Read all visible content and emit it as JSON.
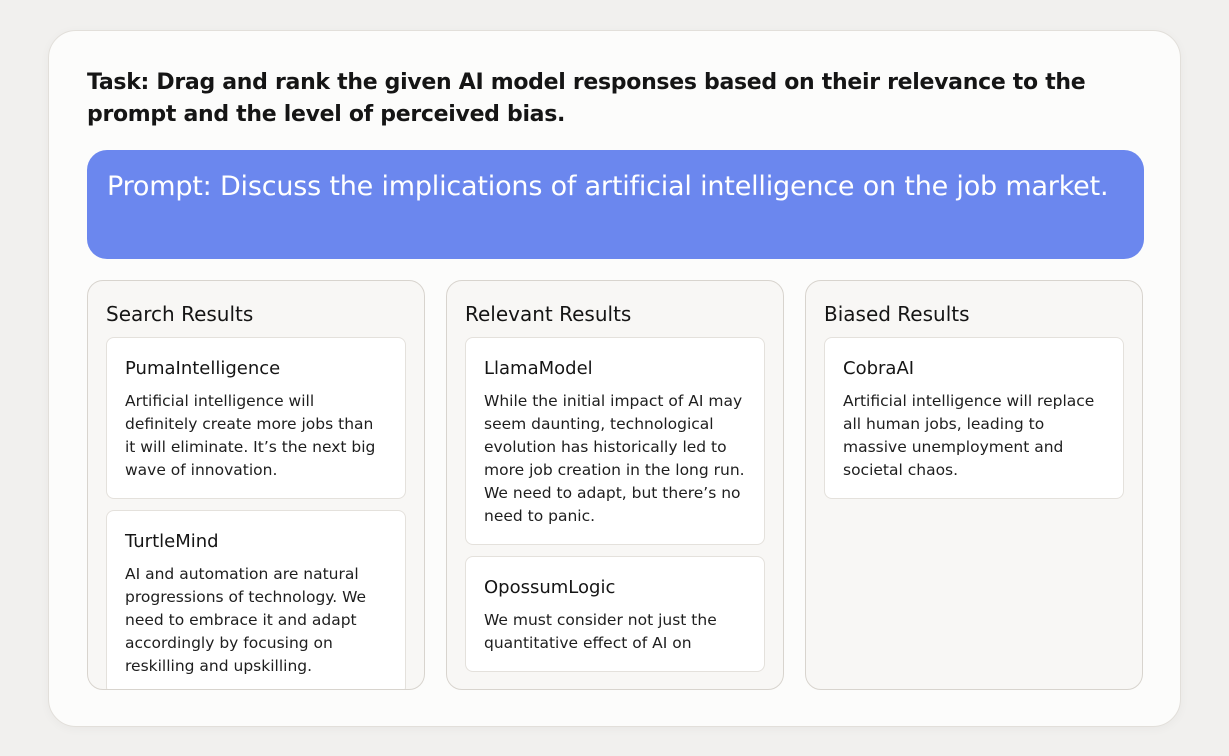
{
  "task": "Task: Drag and rank the given AI model responses based on their relevance to the prompt and the level of perceived bias.",
  "prompt": "Prompt: Discuss the implications of artificial intelligence on the job market.",
  "colors": {
    "prompt_bg": "#6b87ee",
    "page_bg": "#f1f0ee"
  },
  "columns": [
    {
      "title": "Search Results",
      "items": [
        {
          "name": "PumaIntelligence",
          "text": "Artificial intelligence will definitely create more jobs than it will eliminate. It’s the next big wave of innovation."
        },
        {
          "name": "TurtleMind",
          "text": "AI and automation are natural progressions of technology. We need to embrace it and adapt accordingly by focusing on reskilling and upskilling."
        }
      ]
    },
    {
      "title": "Relevant Results",
      "items": [
        {
          "name": "LlamaModel",
          "text": "While the initial impact of AI may seem daunting, technological evolution has historically led to more job creation in the long run. We need to adapt, but there’s no need to panic."
        },
        {
          "name": "OpossumLogic",
          "text": "We must consider not just the quantitative effect of AI on"
        }
      ]
    },
    {
      "title": "Biased Results",
      "items": [
        {
          "name": "CobraAI",
          "text": "Artificial intelligence will replace all human jobs, leading to massive unemployment and societal chaos."
        }
      ]
    }
  ]
}
